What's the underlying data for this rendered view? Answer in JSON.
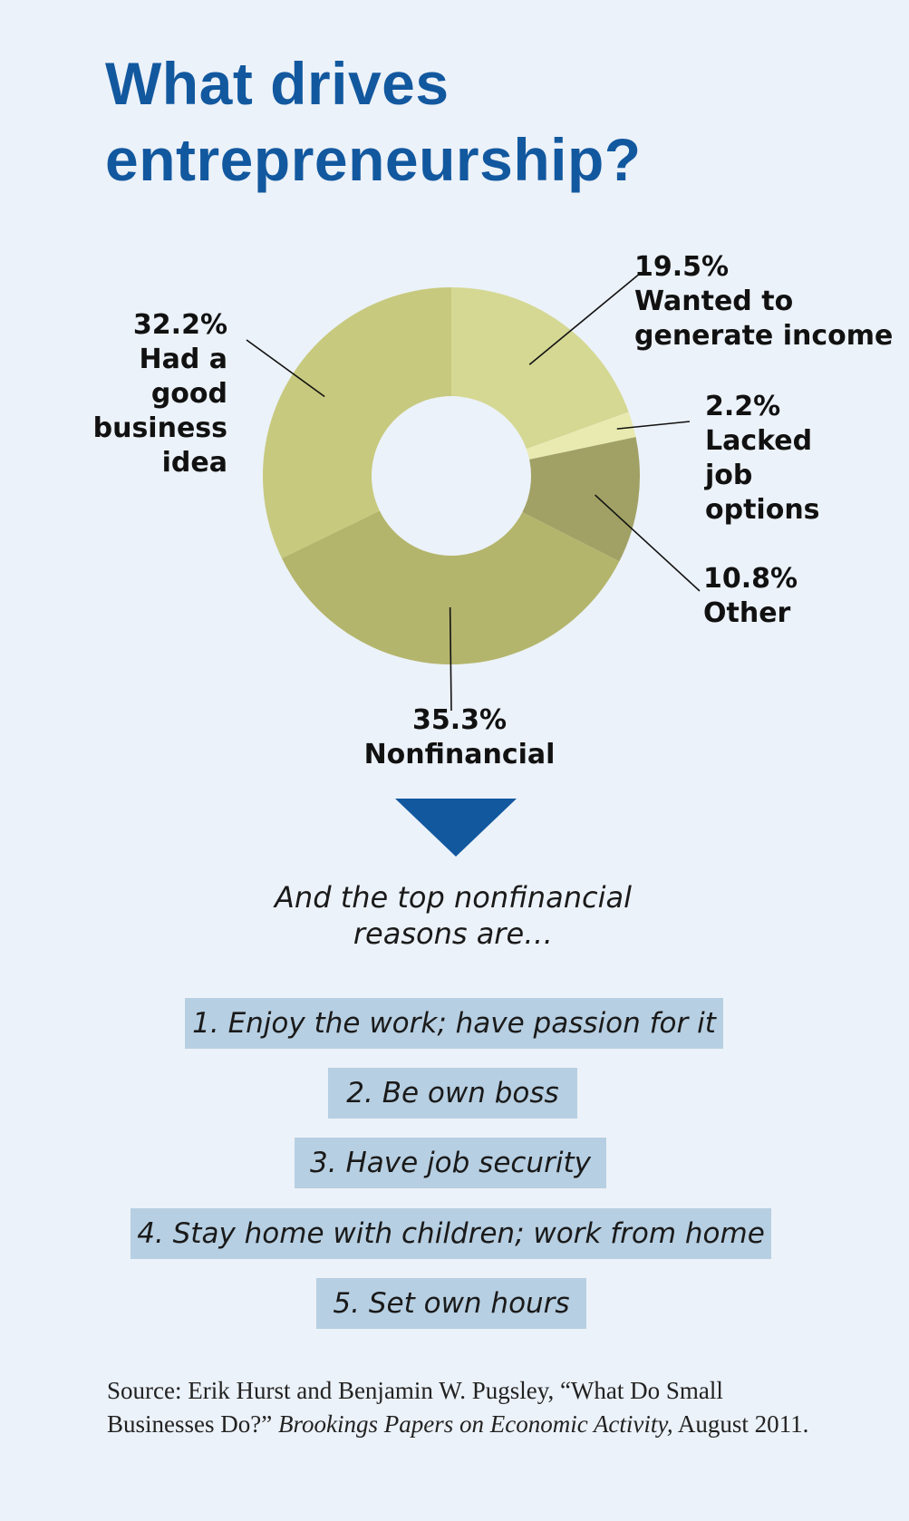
{
  "title_lines": [
    "What drives",
    "entrepreneurship?"
  ],
  "colors": {
    "title": "#12589f",
    "background": "#ecf2f9",
    "arrow": "#12589f",
    "reason_box": "#b7cfe2",
    "slices": [
      "#d5d893",
      "#e8eab0",
      "#a1a165",
      "#b4b56c",
      "#c7c97e"
    ]
  },
  "chart_data": {
    "type": "pie",
    "variant": "donut",
    "title": "What drives entrepreneurship?",
    "slices": [
      {
        "label": "Wanted to generate income",
        "value": 19.5,
        "value_label": "19.5%"
      },
      {
        "label": "Lacked job options",
        "value": 2.2,
        "value_label": "2.2%"
      },
      {
        "label": "Other",
        "value": 10.8,
        "value_label": "10.8%"
      },
      {
        "label": "Nonfinancial",
        "value": 35.3,
        "value_label": "35.3%"
      },
      {
        "label": "Had a good business idea",
        "value": 32.2,
        "value_label": "32.2%"
      }
    ]
  },
  "labels": {
    "idea": {
      "pct": "32.2%",
      "lines": [
        "Had a",
        "good",
        "business",
        "idea"
      ]
    },
    "income": {
      "pct": "19.5%",
      "lines": [
        "Wanted to",
        "generate income"
      ]
    },
    "lacked": {
      "pct": "2.2%",
      "lines": [
        "Lacked",
        "job",
        "options"
      ]
    },
    "other": {
      "pct": "10.8%",
      "lines": [
        "Other"
      ]
    },
    "nonfinancial": {
      "pct": "35.3%",
      "lines": [
        "Nonfinancial"
      ]
    }
  },
  "intro_lines": [
    "And the top nonfinancial",
    "reasons are…"
  ],
  "reasons": [
    "1. Enjoy the work; have passion for it",
    "2. Be own boss",
    "3. Have job security",
    "4. Stay home with children; work from home",
    "5. Set own hours"
  ],
  "source": {
    "lead": "Source: Erik Hurst and Benjamin W. Pugsley, “What Do Small Businesses Do?” ",
    "publication": "Brookings Papers on Economic Activity,",
    "date": " August 2011."
  }
}
